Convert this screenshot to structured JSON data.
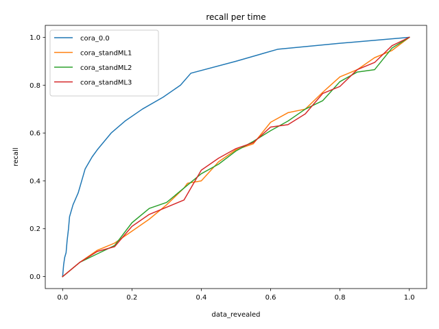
{
  "chart_data": {
    "type": "line",
    "title": "recall per time",
    "xlabel": "data_revealed",
    "ylabel": "recall",
    "xlim": [
      -0.05,
      1.05
    ],
    "ylim": [
      -0.05,
      1.05
    ],
    "xticks": [
      0.0,
      0.2,
      0.4,
      0.6,
      0.8,
      1.0
    ],
    "xtick_labels": [
      "0.0",
      "0.2",
      "0.4",
      "0.6",
      "0.8",
      "1.0"
    ],
    "yticks": [
      0.0,
      0.2,
      0.4,
      0.6,
      0.8,
      1.0
    ],
    "ytick_labels": [
      "0.0",
      "0.2",
      "0.4",
      "0.6",
      "0.8",
      "1.0"
    ],
    "grid": false,
    "legend_position": "top-left",
    "series": [
      {
        "name": "cora_0.0",
        "color": "#1f77b4",
        "x": [
          0,
          0.003,
          0.006,
          0.01,
          0.013,
          0.017,
          0.02,
          0.03,
          0.045,
          0.055,
          0.065,
          0.085,
          0.1,
          0.14,
          0.18,
          0.23,
          0.29,
          0.34,
          0.37,
          0.5,
          0.62,
          0.8,
          1.0
        ],
        "y": [
          0,
          0.05,
          0.08,
          0.1,
          0.15,
          0.2,
          0.25,
          0.3,
          0.35,
          0.4,
          0.45,
          0.5,
          0.53,
          0.6,
          0.65,
          0.7,
          0.75,
          0.8,
          0.85,
          0.9,
          0.95,
          0.975,
          1.0
        ]
      },
      {
        "name": "cora_standML1",
        "color": "#ff7f0e",
        "x": [
          0,
          0.05,
          0.1,
          0.15,
          0.2,
          0.25,
          0.3,
          0.35,
          0.36,
          0.4,
          0.45,
          0.5,
          0.55,
          0.6,
          0.65,
          0.7,
          0.75,
          0.8,
          0.85,
          0.9,
          0.95,
          1.0
        ],
        "y": [
          0,
          0.06,
          0.11,
          0.14,
          0.19,
          0.24,
          0.3,
          0.37,
          0.39,
          0.4,
          0.48,
          0.53,
          0.555,
          0.645,
          0.685,
          0.7,
          0.77,
          0.835,
          0.865,
          0.915,
          0.945,
          1.0
        ]
      },
      {
        "name": "cora_standML2",
        "color": "#2ca02c",
        "x": [
          0,
          0.05,
          0.1,
          0.15,
          0.2,
          0.25,
          0.3,
          0.35,
          0.4,
          0.45,
          0.5,
          0.55,
          0.6,
          0.65,
          0.7,
          0.75,
          0.8,
          0.85,
          0.9,
          0.95,
          1.0
        ],
        "y": [
          0,
          0.06,
          0.095,
          0.13,
          0.225,
          0.285,
          0.31,
          0.37,
          0.43,
          0.47,
          0.525,
          0.565,
          0.61,
          0.65,
          0.7,
          0.735,
          0.815,
          0.855,
          0.865,
          0.955,
          1.0
        ]
      },
      {
        "name": "cora_standML3",
        "color": "#d62728",
        "x": [
          0,
          0.05,
          0.1,
          0.15,
          0.2,
          0.25,
          0.3,
          0.35,
          0.4,
          0.45,
          0.5,
          0.55,
          0.6,
          0.65,
          0.7,
          0.75,
          0.8,
          0.85,
          0.9,
          0.95,
          1.0
        ],
        "y": [
          0,
          0.06,
          0.105,
          0.125,
          0.21,
          0.26,
          0.29,
          0.32,
          0.445,
          0.495,
          0.535,
          0.56,
          0.625,
          0.635,
          0.68,
          0.765,
          0.795,
          0.865,
          0.895,
          0.965,
          1.0
        ]
      }
    ]
  }
}
